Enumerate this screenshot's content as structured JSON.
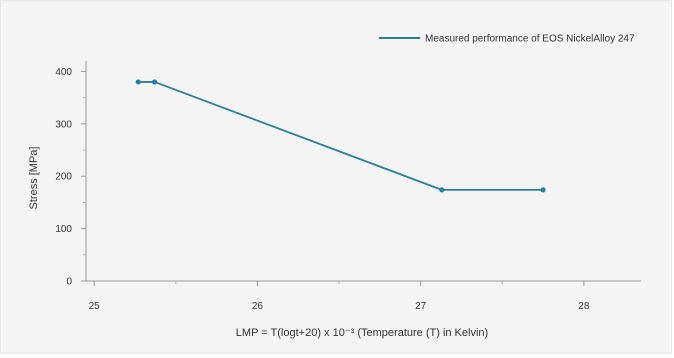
{
  "chart_data": {
    "type": "line",
    "title": "",
    "xlabel": "LMP = T(logt+20) x 10⁻³ (Temperature (T) in Kelvin)",
    "ylabel": "Stress [MPa]",
    "xlim": [
      24.95,
      28.35
    ],
    "ylim": [
      0,
      420
    ],
    "x_ticks": [
      25,
      26,
      27,
      28
    ],
    "y_ticks": [
      0,
      100,
      200,
      300,
      400
    ],
    "x_tick_labels": [
      "25",
      "26",
      "27",
      "28"
    ],
    "y_tick_labels": [
      "0",
      "100",
      "200",
      "300",
      "400"
    ],
    "grid": false,
    "legend_position": "top-right",
    "series": [
      {
        "name": "Measured performance of EOS NickelAlloy 247",
        "color": "#2a7f9e",
        "points": [
          {
            "x": 25.27,
            "y": 380
          },
          {
            "x": 25.37,
            "y": 380
          },
          {
            "x": 27.13,
            "y": 174
          },
          {
            "x": 27.75,
            "y": 174
          }
        ]
      }
    ]
  }
}
